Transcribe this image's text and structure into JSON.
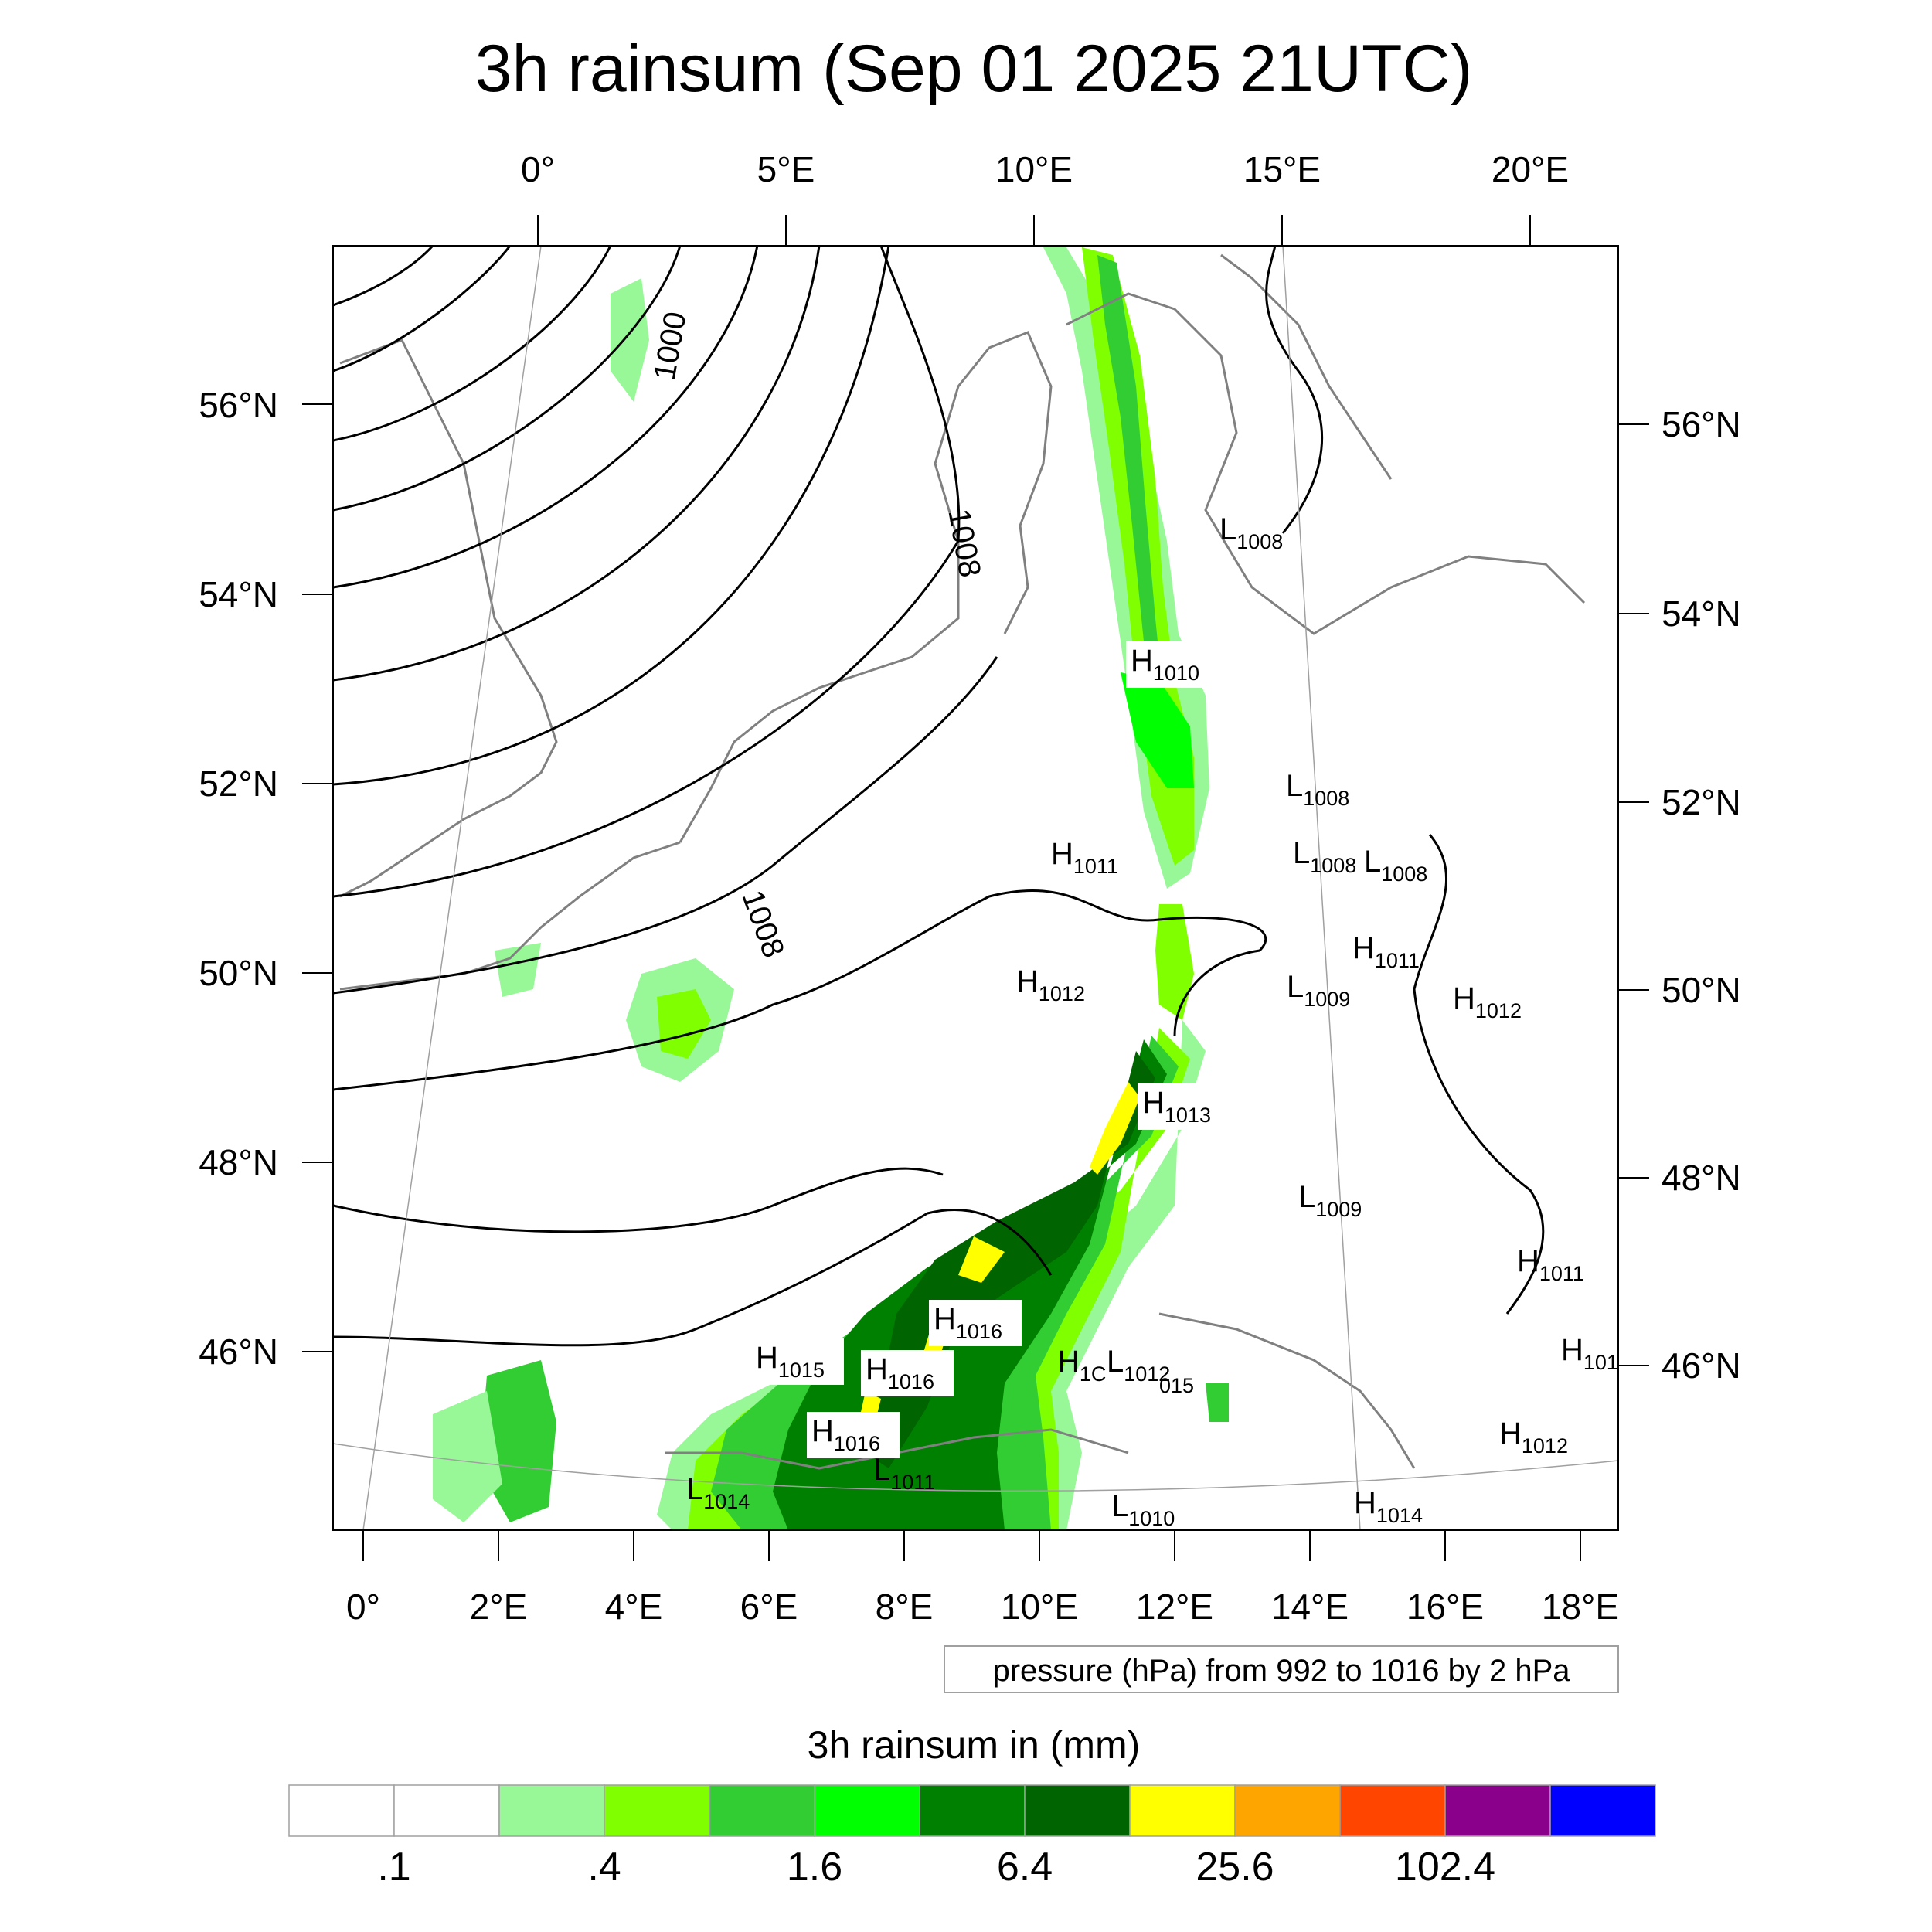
{
  "title": "3h rainsum (Sep 01 2025 21UTC)",
  "top_lon_labels": [
    "0°",
    "5°E",
    "10°E",
    "15°E",
    "20°E"
  ],
  "bottom_lon_labels": [
    "0°",
    "2°E",
    "4°E",
    "6°E",
    "8°E",
    "10°E",
    "12°E",
    "14°E",
    "16°E",
    "18°E"
  ],
  "left_lat_labels": [
    "56°N",
    "54°N",
    "52°N",
    "50°N",
    "48°N",
    "46°N"
  ],
  "right_lat_labels": [
    "56°N",
    "54°N",
    "52°N",
    "50°N",
    "48°N",
    "46°N"
  ],
  "contour_labels": [
    "1000",
    "1008",
    "1008"
  ],
  "pressure_centers": [
    {
      "letter": "L",
      "value": "1008"
    },
    {
      "letter": "H",
      "value": "1010"
    },
    {
      "letter": "L",
      "value": "1008"
    },
    {
      "letter": "H",
      "value": "1011"
    },
    {
      "letter": "L",
      "value": "1008"
    },
    {
      "letter": "L",
      "value": "1008"
    },
    {
      "letter": "H",
      "value": "1011"
    },
    {
      "letter": "H",
      "value": "1012"
    },
    {
      "letter": "L",
      "value": "1009"
    },
    {
      "letter": "H",
      "value": "1012"
    },
    {
      "letter": "H",
      "value": "1013"
    },
    {
      "letter": "L",
      "value": "1009"
    },
    {
      "letter": "H",
      "value": "1011"
    },
    {
      "letter": "H",
      "value": "1016"
    },
    {
      "letter": "H",
      "value": "1015"
    },
    {
      "letter": "H",
      "value": "1016"
    },
    {
      "letter": "H",
      "value": "1C"
    },
    {
      "letter": "L",
      "value": "1012"
    },
    {
      "letter": "",
      "value": "015"
    },
    {
      "letter": "H",
      "value": "101"
    },
    {
      "letter": "H",
      "value": "1016"
    },
    {
      "letter": "L",
      "value": "1011"
    },
    {
      "letter": "L",
      "value": "1014"
    },
    {
      "letter": "H",
      "value": "1012"
    },
    {
      "letter": "L",
      "value": "1010"
    },
    {
      "letter": "H",
      "value": "1014"
    }
  ],
  "info_box": "pressure (hPa) from 992 to 1016 by 2 hPa",
  "colorbar": {
    "title": "3h rainsum in (mm)",
    "labels": [
      ".1",
      ".4",
      "1.6",
      "6.4",
      "25.6",
      "102.4"
    ],
    "colors": [
      "#ffffff",
      "#ffffff",
      "#98f898",
      "#80ff00",
      "#32cd32",
      "#00ff00",
      "#008000",
      "#006400",
      "#ffff00",
      "#ffa500",
      "#ff4500",
      "#8b008b",
      "#0000ff"
    ]
  },
  "colors": {
    "coastline": "#808080",
    "isobar": "#000000",
    "light_rain": "#98f898",
    "rain_lime": "#80ff00",
    "rain_mid": "#32cd32",
    "rain_green": "#00ff00",
    "rain_dark": "#008000",
    "rain_darker": "#006400",
    "rain_heavy": "#ffff00"
  }
}
